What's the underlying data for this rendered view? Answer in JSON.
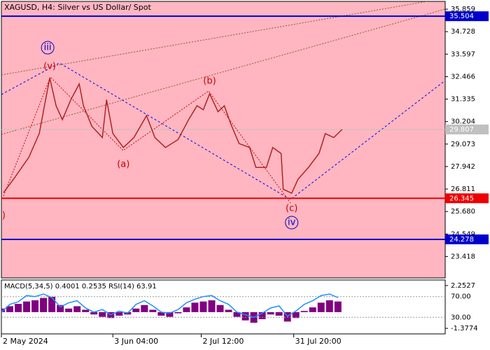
{
  "chart_data": {
    "type": "line",
    "title": "XAGUSD, H4:  Silver vs US Dollar/ Spot",
    "x": [
      1,
      6,
      13,
      18,
      21,
      23,
      26,
      29,
      33,
      37,
      39,
      43,
      48,
      50,
      53,
      58,
      63,
      69,
      73,
      78,
      84,
      89,
      93,
      96,
      99,
      103,
      106,
      109,
      113,
      118,
      121,
      126,
      129,
      133,
      134,
      138,
      141,
      146,
      151,
      154,
      158,
      162
    ],
    "values": [
      26.63,
      27.34,
      28.4,
      29.6,
      31.3,
      32.4,
      31.0,
      30.3,
      31.3,
      32.1,
      31.0,
      29.97,
      29.4,
      31.3,
      29.6,
      28.9,
      29.4,
      30.5,
      29.4,
      28.9,
      29.3,
      30.3,
      31.0,
      30.8,
      31.6,
      30.7,
      31.0,
      30.1,
      29.1,
      28.9,
      27.9,
      27.9,
      28.9,
      28.6,
      26.8,
      26.6,
      27.3,
      27.9,
      28.6,
      29.6,
      29.4,
      29.81
    ],
    "color": "#b22222",
    "xlim": [
      0,
      211
    ],
    "ylim": [
      22.34,
      36.25
    ],
    "yticks": [
      35.859,
      34.728,
      33.597,
      32.466,
      31.335,
      30.204,
      29.073,
      27.942,
      26.811,
      {
        "value": 25.68,
        "label": "25.680"
      },
      24.549,
      23.418
    ],
    "xticks": [
      {
        "value": 0,
        "label": "2 May 2024"
      },
      {
        "value": 53,
        "label": "3 Jun 04:00"
      },
      {
        "value": 95,
        "label": "2 Jul 12:00"
      },
      {
        "value": 139,
        "label": "31 Jul 20:00"
      }
    ],
    "levels": [
      {
        "value": 35.504,
        "color": "#0000cc"
      },
      {
        "value": 26.345,
        "color": "#ee0000"
      },
      {
        "value": 24.278,
        "color": "#0000cc"
      }
    ],
    "last_price": 29.807,
    "annotations": [
      {
        "text": "(v)",
        "x": 23,
        "y": 32.97,
        "color": "#cc0000",
        "circled": false
      },
      {
        "text": "iii",
        "x": 22,
        "y": 33.92,
        "color": "#0000cc",
        "circled": true
      },
      {
        "text": "(a)",
        "x": 58,
        "y": 28.04,
        "color": "#cc0000",
        "circled": false
      },
      {
        "text": "(b)",
        "x": 99,
        "y": 32.23,
        "color": "#cc0000",
        "circled": false
      },
      {
        "text": "(c)",
        "x": 138,
        "y": 25.82,
        "color": "#cc0000",
        "circled": false
      },
      {
        "text": "iv",
        "x": 138,
        "y": 25.12,
        "color": "#0000cc",
        "circled": true
      },
      {
        "text": "(v)",
        "x": -1,
        "y": 25.47,
        "color": "#cc0000",
        "circled": false
      }
    ],
    "indicator": {
      "title": "MACD(5,34,5) 0.4001 0.2535 RSI(14) 63.91",
      "x": [
        0,
        4,
        8,
        12,
        16,
        20,
        24,
        28,
        32,
        36,
        40,
        44,
        48,
        52,
        56,
        60,
        64,
        68,
        72,
        76,
        80,
        84,
        88,
        92,
        96,
        100,
        104,
        108,
        112,
        116,
        120,
        124,
        128,
        132,
        136,
        140,
        144,
        148,
        152,
        156,
        160
      ],
      "macd": [
        0.3,
        0.5,
        0.7,
        0.9,
        1.0,
        1.2,
        1.3,
        0.6,
        0.3,
        0.5,
        0.2,
        -0.2,
        -0.4,
        -0.5,
        -0.3,
        -0.2,
        0.3,
        0.6,
        0.2,
        -0.3,
        -0.4,
        -0.1,
        0.4,
        0.8,
        0.9,
        1.0,
        0.6,
        0.2,
        -0.4,
        -0.7,
        -0.9,
        -0.6,
        -0.2,
        -0.3,
        -0.8,
        -0.5,
        0.1,
        0.4,
        0.8,
        1.0,
        0.9
      ],
      "rsi": [
        40,
        55,
        60,
        72,
        70,
        75,
        68,
        50,
        58,
        62,
        48,
        40,
        45,
        35,
        42,
        38,
        55,
        62,
        52,
        40,
        38,
        45,
        58,
        65,
        70,
        72,
        62,
        55,
        40,
        35,
        30,
        38,
        48,
        52,
        32,
        42,
        55,
        62,
        72,
        75,
        68
      ],
      "macd_color": "#800080",
      "rsi_color": "#1e90ff",
      "ylim": [
        -1.846,
        2.721
      ],
      "yticks": [
        2.2527,
        -1.3774
      ],
      "y2lim": [
        -2,
        102
      ],
      "y2ticks": [
        {
          "value": 70,
          "label": "70.00"
        },
        {
          "value": 30,
          "label": "30.00"
        }
      ]
    }
  }
}
